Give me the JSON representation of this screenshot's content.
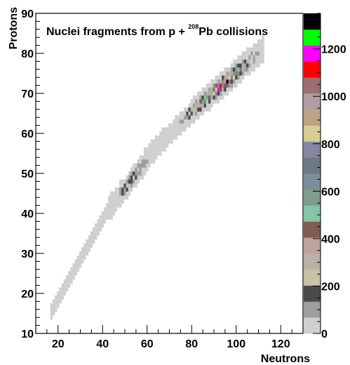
{
  "chart_data": {
    "type": "heatmap",
    "title": {
      "prefix": "Nuclei fragments from p + ",
      "superscript": "208",
      "suffix": "Pb collisions"
    },
    "xlabel": "Neutrons",
    "ylabel": "Protons",
    "xlim": [
      10,
      130
    ],
    "ylim": [
      10,
      90
    ],
    "x_ticks": [
      20,
      40,
      60,
      80,
      100,
      120
    ],
    "y_ticks": [
      10,
      20,
      30,
      40,
      50,
      60,
      70,
      80,
      90
    ],
    "z_ticks": [
      0,
      200,
      400,
      600,
      800,
      1000,
      1200
    ],
    "zlim": [
      0,
      1350
    ],
    "palette": [
      "#d0d0d0",
      "#9e9e9e",
      "#4a4a4a",
      "#c9c1a8",
      "#bab3a5",
      "#bfa39d",
      "#7f5d50",
      "#83c6a6",
      "#7f9c8d",
      "#7b8f98",
      "#6d7a83",
      "#8686a0",
      "#d6ce94",
      "#c0a385",
      "#b39da0",
      "#9b6f71",
      "#ff0000",
      "#ff00ff",
      "#00ff00",
      "#000000"
    ],
    "band_segments": [
      {
        "n": [
          17,
          42
        ],
        "z": [
          15.5,
          40.5
        ],
        "halfwidth": 1.8
      },
      {
        "n": [
          42,
          64
        ],
        "z": [
          40.5,
          56.5
        ],
        "halfwidth": 2.6
      },
      {
        "n": [
          64,
          80
        ],
        "z": [
          56.5,
          65.5
        ],
        "halfwidth": 2.4
      },
      {
        "n": [
          80,
          112
        ],
        "z": [
          65.5,
          81
        ],
        "halfwidth": 3.0
      }
    ],
    "hot_spots": [
      {
        "n": 56,
        "z": 46.5,
        "sigma_n": 5.5,
        "sigma_z": 3.5,
        "peak": 350
      },
      {
        "n": 95,
        "z": 73,
        "sigma_n": 6.5,
        "sigma_z": 4.5,
        "peak": 1280
      },
      {
        "n": 84,
        "z": 66,
        "sigma_n": 4,
        "sigma_z": 3,
        "peak": 480
      }
    ],
    "grid": false,
    "colorbar": "right"
  }
}
